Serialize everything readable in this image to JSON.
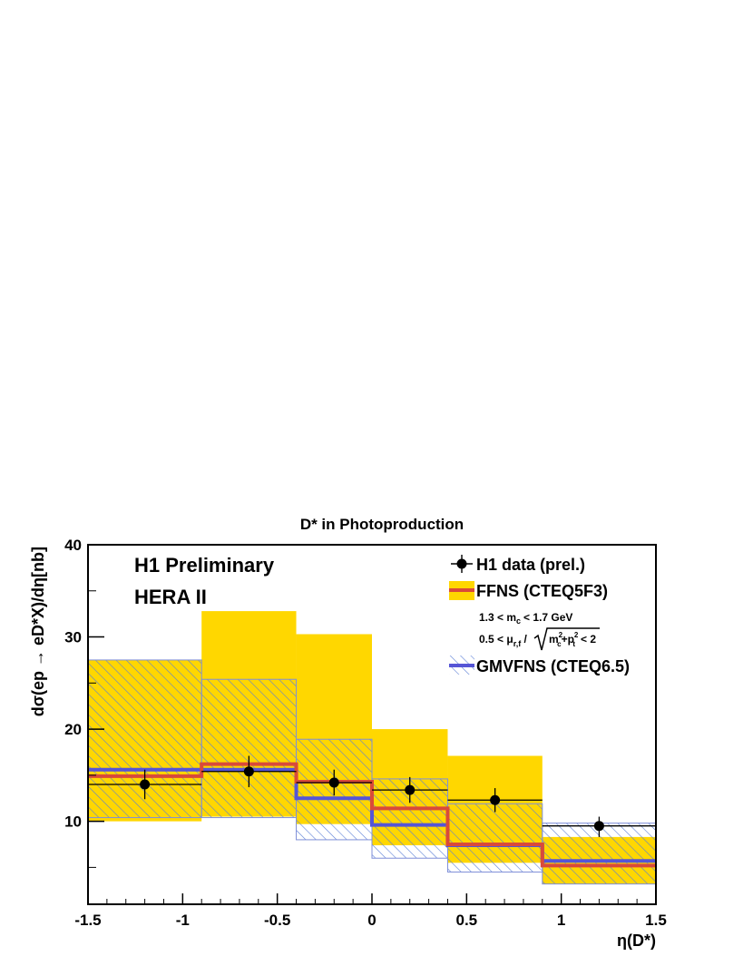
{
  "chart_data": {
    "type": "histogram",
    "title": "D* in Photoproduction",
    "xlabel": "η(D*)",
    "ylabel": "dσ(ep → eD*X)/dη[nb]",
    "xlim": [
      -1.5,
      1.5
    ],
    "ylim": [
      1,
      40
    ],
    "x_ticks": [
      "-1.5",
      "-1",
      "-0.5",
      "0",
      "0.5",
      "1",
      "1.5"
    ],
    "y_ticks": [
      "10",
      "20",
      "30",
      "40"
    ],
    "annotations": [
      "H1 Preliminary",
      "HERA II"
    ],
    "bins": [
      {
        "lo": -1.5,
        "hi": -0.9
      },
      {
        "lo": -0.9,
        "hi": -0.4
      },
      {
        "lo": -0.4,
        "hi": 0.0
      },
      {
        "lo": 0.0,
        "hi": 0.4
      },
      {
        "lo": 0.4,
        "hi": 0.9
      },
      {
        "lo": 0.9,
        "hi": 1.5
      }
    ],
    "series": [
      {
        "name": "H1 data (prel.)",
        "kind": "points",
        "color": "#000000",
        "x": [
          -1.2,
          -0.65,
          -0.2,
          0.2,
          0.65,
          1.2
        ],
        "y": [
          14.0,
          15.4,
          14.2,
          13.4,
          12.3,
          9.5
        ],
        "err_lo": [
          1.6,
          1.7,
          1.4,
          1.4,
          1.3,
          1.2
        ],
        "err_hi": [
          1.6,
          1.7,
          1.4,
          1.4,
          1.3,
          1.0
        ]
      },
      {
        "name": "FFNS (CTEQ5F3)",
        "kind": "step",
        "color": "#d94a3a",
        "values": [
          14.9,
          16.2,
          14.3,
          11.4,
          7.5,
          5.2
        ],
        "band_color": "#ffd700",
        "band_lo": [
          10.0,
          10.5,
          9.7,
          7.4,
          5.5,
          3.2
        ],
        "band_hi": [
          27.5,
          32.8,
          30.3,
          20.0,
          17.1,
          8.3
        ]
      },
      {
        "name": "GMVFNS (CTEQ6.5)",
        "kind": "step",
        "color": "#5555d6",
        "values": [
          15.6,
          15.6,
          12.5,
          9.6,
          7.4,
          5.7
        ],
        "band_color": "#6f8fd0",
        "band_lo": [
          10.4,
          10.4,
          8.0,
          6.0,
          4.5,
          3.2
        ],
        "band_hi": [
          27.5,
          25.4,
          18.9,
          14.6,
          11.9,
          9.8
        ]
      }
    ],
    "legend": {
      "placement": "top-right",
      "items": [
        "H1 data (prel.)",
        "FFNS (CTEQ5F3)",
        "GMVFNS (CTEQ6.5)"
      ],
      "mass_note_left": "1.3 < m",
      "mass_note_sub": "c",
      "mass_note_right": "< 1.7 GeV",
      "scale_note_left": "0.5 < μ",
      "scale_note_sub": "r,f",
      "scale_note_m": "m",
      "scale_note_m_sub": "c",
      "scale_note_p": "+p",
      "scale_note_p_sub": "t",
      "scale_note_sq": "2",
      "scale_note_right": "< 2"
    }
  }
}
